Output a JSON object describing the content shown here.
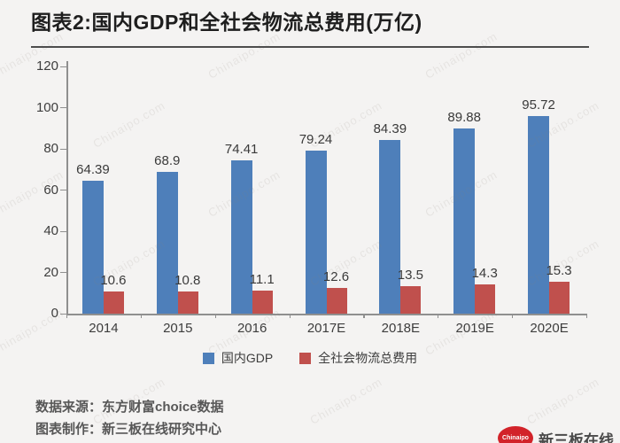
{
  "title": "图表2:国内GDP和全社会物流总费用(万亿)",
  "watermark": "Chinaipo.com",
  "chart_data": {
    "type": "bar",
    "title": "图表2:国内GDP和全社会物流总费用(万亿)",
    "categories": [
      "2014",
      "2015",
      "2016",
      "2017E",
      "2018E",
      "2019E",
      "2020E"
    ],
    "series": [
      {
        "name": "国内GDP",
        "color": "#4e7fba",
        "values": [
          64.39,
          68.9,
          74.41,
          79.24,
          84.39,
          89.88,
          95.72
        ]
      },
      {
        "name": "全社会物流总费用",
        "color": "#c0504d",
        "values": [
          10.6,
          10.8,
          11.1,
          12.6,
          13.5,
          14.3,
          15.3
        ]
      }
    ],
    "xlabel": "",
    "ylabel": "",
    "ylim": [
      0,
      120
    ],
    "yticks": [
      0,
      20,
      40,
      60,
      80,
      100,
      120
    ],
    "grid": false,
    "legend_position": "bottom",
    "data_labels": true
  },
  "footer": {
    "source_line": "数据来源：东方财富choice数据",
    "credit_line": "图表制作：新三板在线研究中心"
  },
  "logo": {
    "badge_text": "Chinaipo",
    "site_name": "新三板在线",
    "badge_color": "#d2232a"
  }
}
